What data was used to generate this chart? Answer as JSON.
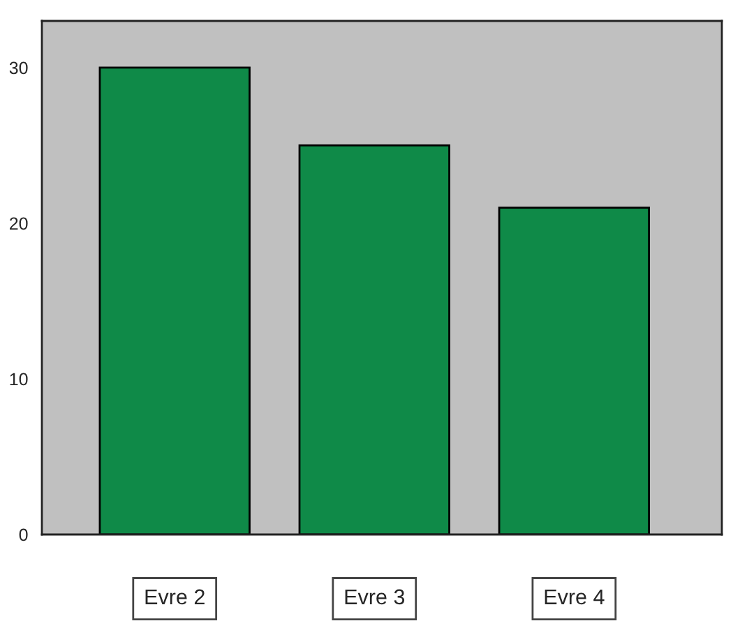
{
  "chart_data": {
    "type": "bar",
    "categories": [
      "Evre 2",
      "Evre 3",
      "Evre 4"
    ],
    "values": [
      30,
      25,
      21
    ],
    "color": "#0f8a48",
    "ylim": [
      0,
      33
    ],
    "yticks": [
      0,
      10,
      20,
      30
    ],
    "grid": false
  }
}
